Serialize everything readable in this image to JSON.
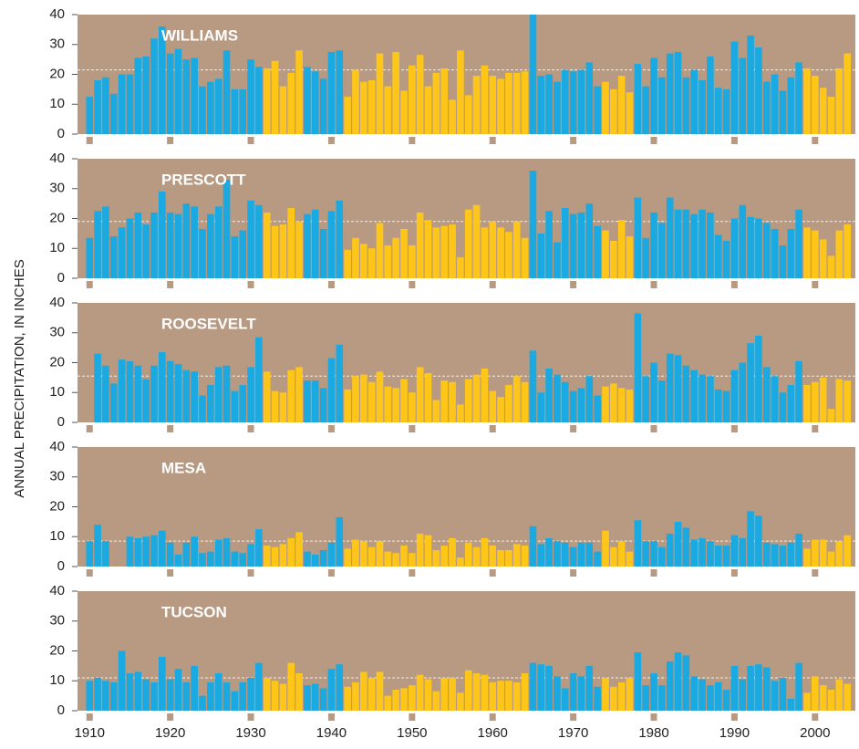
{
  "y_axis_label": "ANNUAL PRECIPITATION, IN INCHES",
  "periods": [
    {
      "start": 1910,
      "end": 1931,
      "color": "#1aa9e0"
    },
    {
      "start": 1932,
      "end": 1936,
      "color": "#ffc61a"
    },
    {
      "start": 1937,
      "end": 1941,
      "color": "#1aa9e0"
    },
    {
      "start": 1942,
      "end": 1964,
      "color": "#ffc61a"
    },
    {
      "start": 1965,
      "end": 1973,
      "color": "#1aa9e0"
    },
    {
      "start": 1974,
      "end": 1977,
      "color": "#ffc61a"
    },
    {
      "start": 1978,
      "end": 1998,
      "color": "#1aa9e0"
    },
    {
      "start": 1999,
      "end": 2004,
      "color": "#ffc61a"
    }
  ],
  "chart_data": [
    {
      "type": "bar",
      "title": "WILLIAMS",
      "mean": 21.5,
      "xlim": [
        1908.5,
        2005
      ],
      "ylim": [
        0,
        40
      ],
      "yticks": [
        0,
        10,
        20,
        30,
        40
      ],
      "xticks": [
        1910,
        1920,
        1930,
        1940,
        1950,
        1960,
        1970,
        1980,
        1990,
        2000
      ],
      "show_xtick_labels": false,
      "x": [
        1910,
        1911,
        1912,
        1913,
        1914,
        1915,
        1916,
        1917,
        1918,
        1919,
        1920,
        1921,
        1922,
        1923,
        1924,
        1925,
        1926,
        1927,
        1928,
        1929,
        1930,
        1931,
        1932,
        1933,
        1934,
        1935,
        1936,
        1937,
        1938,
        1939,
        1940,
        1941,
        1942,
        1943,
        1944,
        1945,
        1946,
        1947,
        1948,
        1949,
        1950,
        1951,
        1952,
        1953,
        1954,
        1955,
        1956,
        1957,
        1958,
        1959,
        1960,
        1961,
        1962,
        1963,
        1964,
        1965,
        1966,
        1967,
        1968,
        1969,
        1970,
        1971,
        1972,
        1973,
        1974,
        1975,
        1976,
        1977,
        1978,
        1979,
        1980,
        1981,
        1982,
        1983,
        1984,
        1985,
        1986,
        1987,
        1988,
        1989,
        1990,
        1991,
        1992,
        1993,
        1994,
        1995,
        1996,
        1997,
        1998,
        1999,
        2000,
        2001,
        2002,
        2003,
        2004
      ],
      "values": [
        12.5,
        18,
        19,
        13.5,
        20,
        20,
        25.5,
        26,
        32,
        36,
        27,
        28.5,
        25,
        25.5,
        16,
        17.5,
        18.5,
        28,
        15,
        15,
        25,
        22.5,
        22,
        24.5,
        16,
        20.5,
        28,
        22.5,
        21,
        18.5,
        27.5,
        28,
        12.5,
        21.5,
        17.5,
        18,
        27,
        16,
        27.5,
        14.5,
        23,
        26.5,
        16,
        20.5,
        22,
        11.5,
        28,
        13,
        19.5,
        23,
        19.5,
        18.5,
        20.5,
        20.5,
        21,
        40,
        19.5,
        20,
        17.5,
        21.5,
        21,
        21.5,
        24,
        16,
        17.5,
        15,
        19.5,
        14,
        23.5,
        16,
        25.5,
        19,
        27,
        27.5,
        19,
        21.5,
        18,
        26,
        15.5,
        15,
        31,
        25.5,
        33,
        29,
        17.5,
        20,
        14.5,
        19,
        24,
        22,
        19.5,
        15.5,
        12.5,
        22,
        27
      ]
    },
    {
      "type": "bar",
      "title": "PRESCOTT",
      "mean": 19,
      "xlim": [
        1908.5,
        2005
      ],
      "ylim": [
        0,
        40
      ],
      "yticks": [
        0,
        10,
        20,
        30,
        40
      ],
      "xticks": [
        1910,
        1920,
        1930,
        1940,
        1950,
        1960,
        1970,
        1980,
        1990,
        2000
      ],
      "show_xtick_labels": false,
      "x": [
        1910,
        1911,
        1912,
        1913,
        1914,
        1915,
        1916,
        1917,
        1918,
        1919,
        1920,
        1921,
        1922,
        1923,
        1924,
        1925,
        1926,
        1927,
        1928,
        1929,
        1930,
        1931,
        1932,
        1933,
        1934,
        1935,
        1936,
        1937,
        1938,
        1939,
        1940,
        1941,
        1942,
        1943,
        1944,
        1945,
        1946,
        1947,
        1948,
        1949,
        1950,
        1951,
        1952,
        1953,
        1954,
        1955,
        1956,
        1957,
        1958,
        1959,
        1960,
        1961,
        1962,
        1963,
        1964,
        1965,
        1966,
        1967,
        1968,
        1969,
        1970,
        1971,
        1972,
        1973,
        1974,
        1975,
        1976,
        1977,
        1978,
        1979,
        1980,
        1981,
        1982,
        1983,
        1984,
        1985,
        1986,
        1987,
        1988,
        1989,
        1990,
        1991,
        1992,
        1993,
        1994,
        1995,
        1996,
        1997,
        1998,
        1999,
        2000,
        2001,
        2002,
        2003,
        2004
      ],
      "values": [
        13.5,
        22.5,
        24,
        14,
        17,
        20,
        22,
        18,
        22,
        29,
        22,
        21.5,
        25,
        24,
        16.5,
        21.5,
        24,
        33,
        14,
        16,
        26,
        24.5,
        22,
        17.5,
        18,
        23.5,
        19,
        21.5,
        23,
        16.5,
        22.5,
        26,
        9.5,
        13.5,
        11.5,
        10,
        18.5,
        11,
        13.5,
        16.5,
        11,
        22,
        19.5,
        17,
        17.5,
        18,
        7,
        23,
        24.5,
        17,
        19,
        17,
        15.5,
        19,
        13.5,
        36,
        15,
        22.5,
        12,
        23.5,
        21.5,
        22,
        25,
        17.5,
        16,
        12.5,
        19.5,
        14,
        27,
        13.5,
        22,
        18.5,
        27,
        23,
        23,
        21.5,
        23,
        22,
        14.5,
        12.5,
        20,
        24.5,
        20.5,
        20,
        18.5,
        16.5,
        11,
        16.5,
        23,
        17,
        16,
        13,
        7.5,
        16,
        18
      ]
    },
    {
      "type": "bar",
      "title": "ROOSEVELT",
      "mean": 15.5,
      "xlim": [
        1908.5,
        2005
      ],
      "ylim": [
        0,
        40
      ],
      "yticks": [
        0,
        10,
        20,
        30,
        40
      ],
      "xticks": [
        1910,
        1920,
        1930,
        1940,
        1950,
        1960,
        1970,
        1980,
        1990,
        2000
      ],
      "show_xtick_labels": false,
      "x": [
        1910,
        1911,
        1912,
        1913,
        1914,
        1915,
        1916,
        1917,
        1918,
        1919,
        1920,
        1921,
        1922,
        1923,
        1924,
        1925,
        1926,
        1927,
        1928,
        1929,
        1930,
        1931,
        1932,
        1933,
        1934,
        1935,
        1936,
        1937,
        1938,
        1939,
        1940,
        1941,
        1942,
        1943,
        1944,
        1945,
        1946,
        1947,
        1948,
        1949,
        1950,
        1951,
        1952,
        1953,
        1954,
        1955,
        1956,
        1957,
        1958,
        1959,
        1960,
        1961,
        1962,
        1963,
        1964,
        1965,
        1966,
        1967,
        1968,
        1969,
        1970,
        1971,
        1972,
        1973,
        1974,
        1975,
        1976,
        1977,
        1978,
        1979,
        1980,
        1981,
        1982,
        1983,
        1984,
        1985,
        1986,
        1987,
        1988,
        1989,
        1990,
        1991,
        1992,
        1993,
        1994,
        1995,
        1996,
        1997,
        1998,
        1999,
        2000,
        2001,
        2002,
        2003,
        2004
      ],
      "values": [
        null,
        23,
        19,
        13,
        21,
        20.5,
        19,
        14.5,
        19,
        23.5,
        20.5,
        19.5,
        17.5,
        17,
        9,
        12.5,
        18.5,
        19,
        10.5,
        12.5,
        18.5,
        28.5,
        17,
        10.5,
        10,
        17.5,
        18.5,
        14,
        14,
        11.5,
        21.5,
        26,
        11,
        15.5,
        16,
        13.5,
        17,
        12,
        11.5,
        14.5,
        10,
        18.5,
        16.5,
        7.5,
        14,
        13.5,
        6,
        14.5,
        16,
        18,
        10.5,
        8.5,
        12.5,
        15.5,
        13.5,
        24,
        10,
        18,
        16,
        13.5,
        10.5,
        11.5,
        15.5,
        9,
        12,
        13,
        11.5,
        11,
        36.5,
        15.5,
        20,
        14,
        23,
        22.5,
        19,
        17.5,
        16,
        15.5,
        11,
        10.5,
        17.5,
        20,
        26.5,
        29,
        18.5,
        15.5,
        10,
        12.5,
        20.5,
        12.5,
        13.5,
        15,
        4.5,
        14.5,
        14
      ]
    },
    {
      "type": "bar",
      "title": "MESA",
      "mean": 8.5,
      "xlim": [
        1908.5,
        2005
      ],
      "ylim": [
        0,
        40
      ],
      "yticks": [
        0,
        10,
        20,
        30,
        40
      ],
      "xticks": [
        1910,
        1920,
        1930,
        1940,
        1950,
        1960,
        1970,
        1980,
        1990,
        2000
      ],
      "show_xtick_labels": false,
      "x": [
        1910,
        1911,
        1912,
        1913,
        1914,
        1915,
        1916,
        1917,
        1918,
        1919,
        1920,
        1921,
        1922,
        1923,
        1924,
        1925,
        1926,
        1927,
        1928,
        1929,
        1930,
        1931,
        1932,
        1933,
        1934,
        1935,
        1936,
        1937,
        1938,
        1939,
        1940,
        1941,
        1942,
        1943,
        1944,
        1945,
        1946,
        1947,
        1948,
        1949,
        1950,
        1951,
        1952,
        1953,
        1954,
        1955,
        1956,
        1957,
        1958,
        1959,
        1960,
        1961,
        1962,
        1963,
        1964,
        1965,
        1966,
        1967,
        1968,
        1969,
        1970,
        1971,
        1972,
        1973,
        1974,
        1975,
        1976,
        1977,
        1978,
        1979,
        1980,
        1981,
        1982,
        1983,
        1984,
        1985,
        1986,
        1987,
        1988,
        1989,
        1990,
        1991,
        1992,
        1993,
        1994,
        1995,
        1996,
        1997,
        1998,
        1999,
        2000,
        2001,
        2002,
        2003,
        2004
      ],
      "values": [
        8.5,
        14,
        8.5,
        null,
        null,
        10,
        9.5,
        10,
        10.5,
        12,
        8,
        4,
        8,
        10,
        4.5,
        5,
        9,
        9.5,
        5,
        4.5,
        7.5,
        12.5,
        7,
        6.5,
        7.5,
        9.5,
        11.5,
        5,
        4,
        5.5,
        8,
        16.5,
        6,
        9,
        8.5,
        6.5,
        8.5,
        5,
        4.5,
        7,
        4.5,
        11,
        10.5,
        5.5,
        7,
        9.5,
        3,
        8,
        6.5,
        9.5,
        7,
        5.5,
        5.5,
        7.5,
        7,
        13.5,
        7.5,
        9.5,
        8.5,
        8,
        6.5,
        8,
        8,
        5,
        12,
        6.5,
        8.5,
        5,
        15.5,
        8.5,
        8.5,
        6.5,
        11,
        15,
        13,
        9,
        9.5,
        8.5,
        7,
        7,
        10.5,
        9.5,
        18.5,
        17,
        8,
        7.5,
        7,
        8,
        11,
        6,
        9,
        9,
        5,
        8.5,
        10.5
      ]
    },
    {
      "type": "bar",
      "title": "TUCSON",
      "mean": 11,
      "xlim": [
        1908.5,
        2005
      ],
      "ylim": [
        0,
        40
      ],
      "yticks": [
        0,
        10,
        20,
        30,
        40
      ],
      "xticks": [
        1910,
        1920,
        1930,
        1940,
        1950,
        1960,
        1970,
        1980,
        1990,
        2000
      ],
      "show_xtick_labels": true,
      "x": [
        1910,
        1911,
        1912,
        1913,
        1914,
        1915,
        1916,
        1917,
        1918,
        1919,
        1920,
        1921,
        1922,
        1923,
        1924,
        1925,
        1926,
        1927,
        1928,
        1929,
        1930,
        1931,
        1932,
        1933,
        1934,
        1935,
        1936,
        1937,
        1938,
        1939,
        1940,
        1941,
        1942,
        1943,
        1944,
        1945,
        1946,
        1947,
        1948,
        1949,
        1950,
        1951,
        1952,
        1953,
        1954,
        1955,
        1956,
        1957,
        1958,
        1959,
        1960,
        1961,
        1962,
        1963,
        1964,
        1965,
        1966,
        1967,
        1968,
        1969,
        1970,
        1971,
        1972,
        1973,
        1974,
        1975,
        1976,
        1977,
        1978,
        1979,
        1980,
        1981,
        1982,
        1983,
        1984,
        1985,
        1986,
        1987,
        1988,
        1989,
        1990,
        1991,
        1992,
        1993,
        1994,
        1995,
        1996,
        1997,
        1998,
        1999,
        2000,
        2001,
        2002,
        2003,
        2004
      ],
      "values": [
        10,
        11,
        10,
        9.5,
        20,
        12.5,
        13,
        10.5,
        9.5,
        18,
        10.5,
        14,
        9.5,
        15,
        5,
        9.5,
        12.5,
        9.5,
        6.5,
        9.5,
        11,
        16,
        11,
        10,
        9,
        16,
        12.5,
        8.5,
        9,
        7.5,
        14,
        15.5,
        8,
        9.5,
        13,
        11,
        13,
        5,
        7,
        7.5,
        8.5,
        12,
        10.5,
        6.5,
        11,
        11,
        6,
        13.5,
        12.5,
        12,
        9.5,
        10,
        10,
        9.5,
        12.5,
        16,
        15.5,
        15,
        11.5,
        7.5,
        12.5,
        11.5,
        15,
        8,
        11,
        8,
        9.5,
        11,
        19.5,
        8.5,
        12.5,
        8.5,
        16.5,
        19.5,
        18.5,
        11.5,
        10.5,
        8.5,
        9.5,
        7,
        15,
        10.5,
        15,
        15.5,
        14.5,
        10,
        11,
        4,
        16,
        6,
        11.5,
        8.5,
        7,
        10.5,
        9
      ]
    }
  ]
}
